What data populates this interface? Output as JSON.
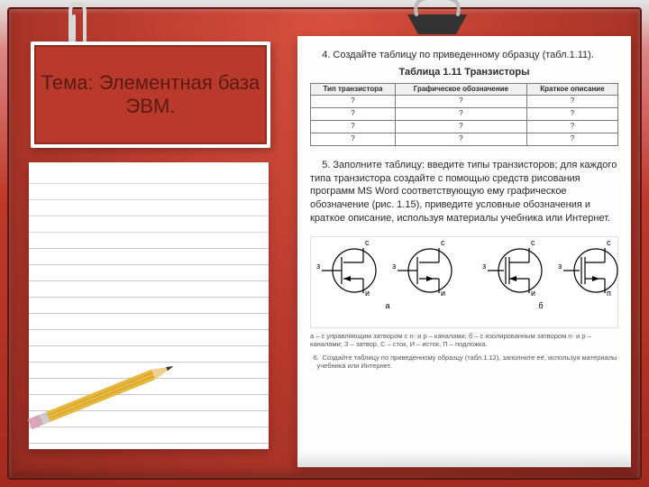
{
  "title": "Тема: Элементная база ЭВМ.",
  "task4": "4. Создайте таблицу по приведенному образцу (табл.1.11).",
  "table_caption": "Таблица 1.11 Транзисторы",
  "table": {
    "columns": [
      "Тип транзистора",
      "Графическое обозначение",
      "Краткое описание"
    ],
    "rows": [
      [
        "?",
        "?",
        "?"
      ],
      [
        "?",
        "?",
        "?"
      ],
      [
        "?",
        "?",
        "?"
      ],
      [
        "?",
        "?",
        "?"
      ]
    ],
    "header_bg": "#f0f0f0",
    "border_color": "#7a7a7a"
  },
  "task5": "5. Заполните таблицу: введите типы транзисторов; для каждого типа транзистора создайте с помощью средств рисования программ MS Word соответствующую ему графическое обозначение (рис. 1.15), приведите условные обозначения и краткое описание, используя материалы учебника или Интернет.",
  "figure": {
    "labels": {
      "z": "з",
      "s": "с",
      "i": "и",
      "p": "п",
      "a": "а",
      "b": "б"
    },
    "stroke": "#000000",
    "stroke_width": 1.2
  },
  "legend": "а – с управляющим затвором с n- и p – каналами;  б – с изолированным затвором n- и p – каналами; З – затвор, С – сток, И – исток, П – подложка.",
  "task6_num": "6.",
  "task6": "Создайте таблицу по приведенному образцу (табл.1.12), заполните её, используя материалы учебника или Интернет.",
  "colors": {
    "bg_top": "#e5e5e5",
    "bg_red1": "#d8503f",
    "bg_red2": "#b0362a",
    "bg_red3": "#902a20",
    "frame_border": "#5a1a12",
    "card_bg": "#b93a2d",
    "card_inner": "#8e2b21",
    "paper": "#fdfdfd",
    "rule": "#c6c6ce",
    "rule2": "#d8d8dc",
    "pencil_body": "#e8b83e",
    "pencil_tip": "#f0d090",
    "pencil_lead": "#333",
    "pencil_ferrule": "#ccc",
    "pencil_eraser": "#d9a6b5",
    "clip_wire": "#d8d8d8",
    "binder_body": "#333333",
    "binder_arm": "#bbbbbb"
  },
  "ruled_lines": 17
}
